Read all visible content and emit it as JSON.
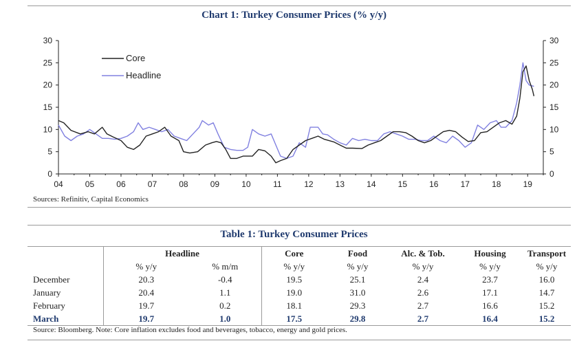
{
  "chart_title": "Chart 1: Turkey Consumer Prices (% y/y)",
  "chart_source": "Sources: Refinitiv, Capital Economics",
  "table_title": "Table 1: Turkey Consumer Prices",
  "table_source": "Source: Bloomberg. Note: Core inflation excludes food and beverages, tobacco, energy and gold prices.",
  "colors": {
    "core": "#222222",
    "headline": "#8080e0",
    "title": "#1f3a6e"
  },
  "chart_data": {
    "type": "line",
    "title": "Chart 1: Turkey Consumer Prices (% y/y)",
    "xlabel": "",
    "ylabel": "",
    "ylim": [
      0,
      30
    ],
    "xlim": [
      2004.0,
      2019.5
    ],
    "yticks": [
      "0",
      "5",
      "10",
      "15",
      "20",
      "25",
      "30"
    ],
    "xticks": [
      "04",
      "05",
      "06",
      "07",
      "08",
      "09",
      "10",
      "11",
      "12",
      "13",
      "14",
      "15",
      "16",
      "17",
      "18",
      "19"
    ],
    "legend": "top-left",
    "grid": false,
    "series": [
      {
        "name": "Core",
        "x": [
          2004.0,
          2004.17,
          2004.4,
          2004.7,
          2004.95,
          2005.15,
          2005.4,
          2005.55,
          2005.75,
          2006.0,
          2006.2,
          2006.4,
          2006.6,
          2006.8,
          2007.0,
          2007.2,
          2007.4,
          2007.6,
          2007.85,
          2008.0,
          2008.2,
          2008.45,
          2008.7,
          2008.9,
          2009.05,
          2009.2,
          2009.35,
          2009.5,
          2009.7,
          2009.9,
          2010.1,
          2010.2,
          2010.4,
          2010.6,
          2010.8,
          2010.95,
          2011.1,
          2011.3,
          2011.5,
          2011.7,
          2011.9,
          2012.1,
          2012.3,
          2012.5,
          2012.8,
          2013.0,
          2013.2,
          2013.4,
          2013.7,
          2013.9,
          2014.1,
          2014.3,
          2014.5,
          2014.7,
          2014.9,
          2015.1,
          2015.3,
          2015.5,
          2015.7,
          2015.9,
          2016.1,
          2016.3,
          2016.5,
          2016.7,
          2016.9,
          2017.1,
          2017.3,
          2017.5,
          2017.7,
          2017.9,
          2018.1,
          2018.3,
          2018.5,
          2018.65,
          2018.75,
          2018.85,
          2018.95,
          2019.05,
          2019.15,
          2019.2
        ],
        "y": [
          12.0,
          11.5,
          9.8,
          9.0,
          9.5,
          9.0,
          10.5,
          9.0,
          8.3,
          7.5,
          6.0,
          5.5,
          6.5,
          8.5,
          9.0,
          9.5,
          10.5,
          8.5,
          7.5,
          5.0,
          4.7,
          5.0,
          6.5,
          7.0,
          7.3,
          7.0,
          5.5,
          3.5,
          3.5,
          4.0,
          4.0,
          4.0,
          5.5,
          5.2,
          4.0,
          2.5,
          3.0,
          3.5,
          5.5,
          6.5,
          7.5,
          8.0,
          8.5,
          7.8,
          7.2,
          6.5,
          5.8,
          5.8,
          5.7,
          6.5,
          7.0,
          7.5,
          8.5,
          9.5,
          9.5,
          9.3,
          8.5,
          7.5,
          7.0,
          7.5,
          8.5,
          9.5,
          9.8,
          9.5,
          8.3,
          7.3,
          7.5,
          9.3,
          9.5,
          10.5,
          11.5,
          12.0,
          11.2,
          13.0,
          17.0,
          23.0,
          24.3,
          21.0,
          19.0,
          17.5
        ]
      },
      {
        "name": "Headline",
        "x": [
          2004.0,
          2004.2,
          2004.4,
          2004.6,
          2004.8,
          2005.0,
          2005.2,
          2005.4,
          2005.6,
          2005.8,
          2006.0,
          2006.2,
          2006.4,
          2006.55,
          2006.7,
          2006.9,
          2007.1,
          2007.3,
          2007.5,
          2007.7,
          2007.9,
          2008.1,
          2008.3,
          2008.5,
          2008.6,
          2008.8,
          2008.95,
          2009.1,
          2009.3,
          2009.5,
          2009.7,
          2009.9,
          2010.05,
          2010.2,
          2010.4,
          2010.6,
          2010.8,
          2010.95,
          2011.1,
          2011.3,
          2011.5,
          2011.7,
          2011.9,
          2012.05,
          2012.3,
          2012.45,
          2012.6,
          2012.8,
          2013.0,
          2013.2,
          2013.4,
          2013.6,
          2013.8,
          2014.0,
          2014.2,
          2014.4,
          2014.6,
          2014.8,
          2015.0,
          2015.2,
          2015.4,
          2015.6,
          2015.8,
          2016.0,
          2016.2,
          2016.4,
          2016.6,
          2016.8,
          2017.0,
          2017.2,
          2017.4,
          2017.6,
          2017.8,
          2018.0,
          2018.15,
          2018.3,
          2018.5,
          2018.65,
          2018.75,
          2018.85,
          2018.95,
          2019.05,
          2019.2
        ],
        "y": [
          11.0,
          8.5,
          7.5,
          8.5,
          9.0,
          10.0,
          9.0,
          8.0,
          8.0,
          7.8,
          8.0,
          8.5,
          9.5,
          11.5,
          10.0,
          10.5,
          10.0,
          9.5,
          10.0,
          8.5,
          8.0,
          7.5,
          9.0,
          10.5,
          12.0,
          11.0,
          11.5,
          9.0,
          6.0,
          5.5,
          5.3,
          5.3,
          6.0,
          10.0,
          9.0,
          8.5,
          9.0,
          6.5,
          4.0,
          3.5,
          4.0,
          7.0,
          6.0,
          10.5,
          10.5,
          9.0,
          8.8,
          7.8,
          7.0,
          6.5,
          8.0,
          7.5,
          7.8,
          7.5,
          7.5,
          9.0,
          9.5,
          9.0,
          8.5,
          7.8,
          7.8,
          7.5,
          7.5,
          8.5,
          7.5,
          7.0,
          8.5,
          7.5,
          6.0,
          7.0,
          11.0,
          10.0,
          11.5,
          12.0,
          10.5,
          10.5,
          12.0,
          16.0,
          20.0,
          25.0,
          21.0,
          20.0,
          19.7
        ]
      }
    ]
  },
  "table": {
    "group_headers": [
      "Headline",
      "Core",
      "Food",
      "Alc. & Tob.",
      "Housing",
      "Transport"
    ],
    "units": [
      "% y/y",
      "% m/m",
      "% y/y",
      "% y/y",
      "% y/y",
      "% y/y",
      "% y/y"
    ],
    "rows": [
      {
        "label": "December",
        "values": [
          "20.3",
          "-0.4",
          "19.5",
          "25.1",
          "2.4",
          "23.7",
          "16.0"
        ]
      },
      {
        "label": "January",
        "values": [
          "20.4",
          "1.1",
          "19.0",
          "31.0",
          "2.6",
          "17.1",
          "14.7"
        ]
      },
      {
        "label": "February",
        "values": [
          "19.7",
          "0.2",
          "18.1",
          "29.3",
          "2.7",
          "16.6",
          "15.2"
        ]
      },
      {
        "label": "March",
        "values": [
          "19.7",
          "1.0",
          "17.5",
          "29.8",
          "2.7",
          "16.4",
          "15.2"
        ]
      }
    ]
  }
}
